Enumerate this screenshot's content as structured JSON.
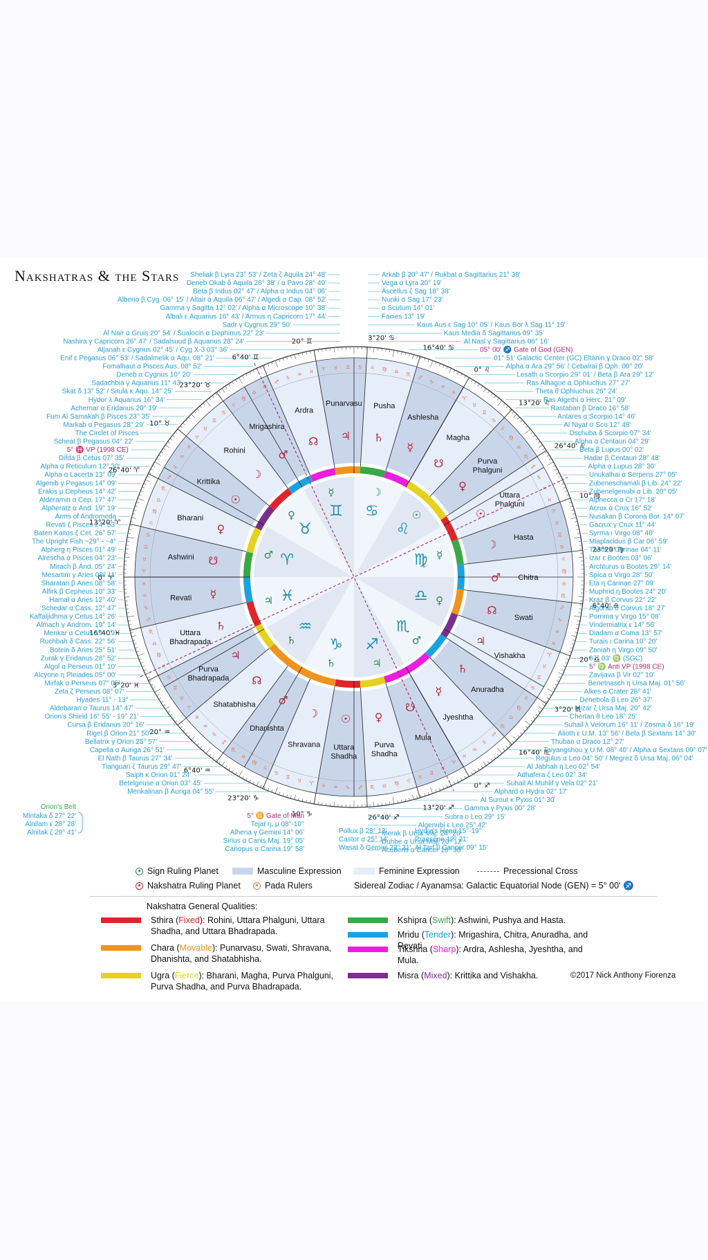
{
  "title": "Nakshatras & the Stars",
  "colors": {
    "fixed": "#e0242b",
    "movable": "#f0921e",
    "fierce": "#e6d21c",
    "swift": "#3aa848",
    "tender": "#1aa3df",
    "sharp": "#ec1ce0",
    "mixed": "#7a2f8f",
    "star_label": "#2a9fd0",
    "masculine": "#c9d6ea",
    "feminine": "#e6eefa",
    "sign_ruler": "#2f8a55",
    "nak_ruler": "#b8283a",
    "pada": "#e4734a",
    "precession": "#9b1b5f",
    "sign_glyph": "#1f8fb8"
  },
  "nakshatras": [
    {
      "name": "Ashwini",
      "ruler": "☋"
    },
    {
      "name": "Bharani",
      "ruler": "♀"
    },
    {
      "name": "Krittika",
      "ruler": "☉"
    },
    {
      "name": "Rohini",
      "ruler": "☽"
    },
    {
      "name": "Mrigashira",
      "ruler": "♂"
    },
    {
      "name": "Ardra",
      "ruler": "☊"
    },
    {
      "name": "Punarvasu",
      "ruler": "♃"
    },
    {
      "name": "Pusha",
      "ruler": "♄"
    },
    {
      "name": "Ashlesha",
      "ruler": "☿"
    },
    {
      "name": "Magha",
      "ruler": "☋"
    },
    {
      "name": "Purva Phalguni",
      "ruler": "♀"
    },
    {
      "name": "Uttara Phalguni",
      "ruler": "☉"
    },
    {
      "name": "Hasta",
      "ruler": "☽"
    },
    {
      "name": "Chitra",
      "ruler": "♂"
    },
    {
      "name": "Swati",
      "ruler": "☊"
    },
    {
      "name": "Vishakha",
      "ruler": "♃"
    },
    {
      "name": "Anuradha",
      "ruler": "♄"
    },
    {
      "name": "Jyeshtha",
      "ruler": "☿"
    },
    {
      "name": "Mula",
      "ruler": "☋"
    },
    {
      "name": "Purva Shadha",
      "ruler": "♀"
    },
    {
      "name": "Uttara Shadha",
      "ruler": "☉"
    },
    {
      "name": "Shravana",
      "ruler": "☽"
    },
    {
      "name": "Dhanishta",
      "ruler": "♂"
    },
    {
      "name": "Shatabhisha",
      "ruler": "☊"
    },
    {
      "name": "Purva Bhadrapada",
      "ruler": "♃"
    },
    {
      "name": "Uttara Bhadrapada",
      "ruler": "♄"
    },
    {
      "name": "Revati",
      "ruler": "☿"
    }
  ],
  "signs": [
    {
      "glyph": "♈",
      "ruler": "♂"
    },
    {
      "glyph": "♉",
      "ruler": "♀"
    },
    {
      "glyph": "♊",
      "ruler": "☿"
    },
    {
      "glyph": "♋",
      "ruler": "☽"
    },
    {
      "glyph": "♌",
      "ruler": "☉"
    },
    {
      "glyph": "♍",
      "ruler": "☿"
    },
    {
      "glyph": "♎",
      "ruler": "♀"
    },
    {
      "glyph": "♏",
      "ruler": "♂"
    },
    {
      "glyph": "♐",
      "ruler": "♃"
    },
    {
      "glyph": "♑",
      "ruler": "♄"
    },
    {
      "glyph": "♒",
      "ruler": "♄"
    },
    {
      "glyph": "♓",
      "ruler": "♃"
    }
  ],
  "degree_labels": [
    {
      "deg": 0,
      "label": "0° ♈"
    },
    {
      "deg": 13.333,
      "label": "13°20' ♈"
    },
    {
      "deg": 26.667,
      "label": "26°40' ♈"
    },
    {
      "deg": 40,
      "label": "10° ♉"
    },
    {
      "deg": 53.333,
      "label": "23°20' ♉"
    },
    {
      "deg": 66.667,
      "label": "6°40' ♊"
    },
    {
      "deg": 80,
      "label": "20° ♊"
    },
    {
      "deg": 93.333,
      "label": "3°20' ♋"
    },
    {
      "deg": 106.667,
      "label": "16°40' ♋"
    },
    {
      "deg": 120,
      "label": "0° ♌"
    },
    {
      "deg": 133.333,
      "label": "13°20' ♌"
    },
    {
      "deg": 146.667,
      "label": "26°40' ♌"
    },
    {
      "deg": 160,
      "label": "10° ♍"
    },
    {
      "deg": 173.333,
      "label": "23°20' ♍"
    },
    {
      "deg": 186.667,
      "label": "6°40' ♎"
    },
    {
      "deg": 200,
      "label": "20° ♎"
    },
    {
      "deg": 213.333,
      "label": "3°20' ♏"
    },
    {
      "deg": 226.667,
      "label": "16°40' ♏"
    },
    {
      "deg": 240,
      "label": "0° ♐"
    },
    {
      "deg": 253.333,
      "label": "13°20' ♐"
    },
    {
      "deg": 266.667,
      "label": "26°40' ♐"
    },
    {
      "deg": 280,
      "label": "10° ♑"
    },
    {
      "deg": 293.333,
      "label": "23°20' ♑"
    },
    {
      "deg": 306.667,
      "label": "6°40' ♒"
    },
    {
      "deg": 320,
      "label": "20° ♒"
    },
    {
      "deg": 333.333,
      "label": "3°20' ♓"
    },
    {
      "deg": 346.667,
      "label": "16°40' ♓"
    }
  ],
  "ring_qualities": [
    "swift",
    "fierce",
    "mixed",
    "fixed",
    "tender",
    "sharp",
    "movable",
    "swift",
    "sharp",
    "fierce",
    "fierce",
    "fixed",
    "swift",
    "tender",
    "movable",
    "mixed",
    "tender",
    "sharp",
    "sharp",
    "fierce",
    "fixed",
    "movable",
    "movable",
    "movable",
    "fierce",
    "fixed",
    "tender"
  ],
  "stars_left": [
    "Sheliak β Lyra 23° 53' / Zeta ζ Aquila 24° 48'",
    "Deneb Okab δ Aquila 28° 38' / α Pavo 28° 49'",
    "Beta β Indus 02° 47' / Alpha α Indus 04° 06'",
    "Alberio β Cyg. 06° 15' / Altair α Aquila 06° 47' / Algedi α Cap. 08° 52'",
    "Gamma γ Sagitta 12° 02' / Alpha α Microscope 10° 38'",
    "Albali ε Aquarius 16° 43' / Armus η Capricorn 17° 44'",
    "Sadr γ Cygnus 29° 50'",
    "Al Nair α Gruis 20° 54' / Sualocin α Dephinus 22° 23'",
    "Nashira γ Capricorn 26° 47' / Sadalsuud β Aquarius 28° 24'",
    "Aljanah ε Cygnus 02° 45' / Cyg X-3 03° 36'",
    "Enif ε Pegasus 06° 53' / Sadalmelik α Aqu. 08° 21'",
    "Fomalhaut α Pisces Aus. 08° 52'",
    "Deneb α Cygnus 10° 20'",
    "Sadachbia γ Aquarius 11° 43'",
    "Skat δ 13° 52' / Situla κ Aqu. 14° 25'",
    "Hydor λ Aquarius 16° 34'",
    "Achernar α Eridanus 20° 19'",
    "Fum Al Samakah β Pisces 23° 35'",
    "Markab α Pegasus 28° 29'",
    "The Circlet of Pisces",
    "Scheat β Pegasus 04° 22'",
    "5° ♓ VP (1998 CE)",
    "Difda β Cetus 07° 35'",
    "Alpha α Reticulum 12° 30'",
    "Alpha α Lacerta 13° 09'",
    "Algenib γ Pegasus 14° 09'",
    "Erakis μ Cepheus 14° 42'",
    "Alderamin α Cep. 17° 47'",
    "Alpheratz α And. 19° 19'",
    "Arms of Andromeda",
    "Revati ζ Pisces 24° 53'",
    "Baten Kaitos ζ Cet. 26° 57'",
    "The Upright Fish ~29° - ~4°",
    "Alpherg η Pisces 01° 49'",
    "Alrescha α Pisces 04° 23'",
    "Mirach β And. 05° 24'",
    "Mesartim γ Aries 08° 11'",
    "Sharatan β Aries 08° 58'",
    "Alfirk β Cepheus 10° 33'",
    "Hamal α Aries 12° 40'",
    "Schedar α Cass. 12° 47'",
    "Kaffaljidhma γ Cetus 14° 26'",
    "Almach γ Androm. 19° 14'",
    "Menkar α Cetus 19° 19'",
    "Ruchbah δ Cass. 22° 56'",
    "Botein δ Aries 25° 51'",
    "Zurak γ Eridanus 28° 52'",
    "Algol α Perseus 01° 10'",
    "Alcyone η Pleiades 05° 00'",
    "Mirfak α Perseus 07° 05'",
    "Zeta ζ Perseus 08° 07'",
    "Hyades 11° - 13°",
    "Aldebaran α Taurus 14° 47'",
    "Orion's Shield 16° 55' - 19° 21'",
    "Cursa β Eridanus 20° 16'",
    "Rigel β Orion 21° 50'",
    "Bellatrix γ Orion 25° 57'",
    "Capella α Auriga 26° 51'",
    "El Nath β Taurus 27° 34'",
    "Tianguan ζ Taurus 29° 47'",
    "Saiph κ Orion 01° 24'",
    "Betelgeuse α Orion 03° 45'",
    "Menkalinan β Auriga 04° 55'"
  ],
  "orions_belt": {
    "title": "Orion's Belt",
    "stars": [
      "Mintaka δ 27° 22'",
      "Alnilam ε 28° 28'",
      "Alnitak ζ 29° 41'"
    ]
  },
  "stars_bottom": [
    "5° ♊ Gate of Man",
    "Tejat η, μ 08°-10°",
    "Alhena γ Gemini 14° 06'",
    "Sirius α Canis Maj. 19° 05'",
    "Canopus α Carina 19° 58'",
    "Pollux β 28° 13'",
    "Castor α 25° 14'",
    "Wasat δ Gemini 23° 31'",
    "Hydra's Head 15°-19°",
    "Praesepe 12° 21'",
    "Al Tarf β Cancer 09° 15'"
  ],
  "stars_right": [
    "Arkab β 20° 47' / Rukbat α Sagittarius 21° 38'",
    "Vega α Lyra 20° 19'",
    "Ascellus ζ Sag 18° 38'",
    "Nunki σ Sag 17° 23'",
    "α Scutum 14° 01'",
    "Facies 13° 19'",
    "Kaus Aus ε Sag 10° 05' / Kaus Bor λ Sag 11° 19'",
    "Kaus Media δ Sagittarius 09° 35'",
    "Al Nasl γ Sagittarius 06° 16'",
    "05° 00' ♐ Gate of God (GEN)",
    "01° 51' Galactic Center (GC)   Eltanin γ Draco 02° 58'",
    "Alpha α Ara 29° 56' / Cebalrai β Oph. 00° 20'",
    "Lesath υ Scorpio 29° 01' /  Beta β Ara 29° 12'",
    "Ras Alhague α Ophiuchus 27° 27'",
    "Theta θ Ophiuchus 26° 24'",
    "Ras Algethi α Herc. 21° 09'",
    "Rastaban β Draco 16° 58'",
    "Antares α Scorpio 14° 46'",
    "Al Niyat σ Sco 12° 48'",
    "Dschuba δ Scorpio 07° 34'",
    "Alpha α Centauri 04° 29'",
    "Beta β Lupus 00° 02'",
    "Hadar β Centauri 28° 48'",
    "Alpha α Lupus 28° 30'",
    "Unukalhai α Serpens 27° 05'",
    "Zubeneschamali β Lib. 24° 22'",
    "Zubenelgenubi α Lib. 20° 05'",
    "Alphecca α Cr 17° 18'",
    "Acrux α Crux 16° 52'",
    "Nusakan β Corona Bor. 14° 07'",
    "Gacrux γ Crux 11° 44'",
    "Syrma ι Virgo 08° 48'",
    "Miaplacidus β Car 06° 59'",
    "Theta θ Carinae 04° 11'",
    "Izar ε Boötes 03° 06'",
    "Archturus α Bootes 29° 14'",
    "Spica α Virgo 28° 50'",
    "Eta η Carinae 27° 09'",
    "Muphrid η Bootes 24° 20'",
    "Kraz β Corvus 22° 22'",
    "Algorab δ Corvus 18° 27'",
    "Porrima γ Virgo 15° 08'",
    "Vindemiatrix ε 14° 56'",
    "Diadam α Coma 13° 57'",
    "Turais ι Carina 10° 20'",
    "Zaniah η Virgo 09° 50'",
    "07° 03' ♍ (SGC)",
    "5° ♍ Anti VP (1998 CE)",
    "Zavijava β Vir 02° 10'",
    "Benetnasch η Ursa Maj. 01° 56'",
    "Alkes α Crater 28° 41'",
    "Denebola β Leo 26° 37'",
    "Mizar ζ Ursa Maj. 20° 42'",
    "Chertan θ Leo 18° 25'",
    "Suhail λ Velorum 16° 11' / Zosma δ 16° 19'",
    "Alioth ε U.M. 13° 56' / Beta β Sextans 14° 30'",
    "Thuban α Draco 12° 27'",
    "Taiyangshou χ U.M. 08° 40' / Alpha α Sextans 09° 07'",
    "Regulus α Leo 04° 50' / Megrez δ Ursa Maj. 06° 04'",
    "Al Jabhah η Leo 02° 54'",
    "Adhafera ζ Leo 02° 34'",
    "Suhail Al Muhlif γ Vela 02° 21'",
    "Alphard α Hydra 02° 17'",
    "Al Sumut κ Pyxis 01° 30'",
    "Gamma γ Pyxis 00° 28'",
    "Subra ο Leo 29° 15'",
    "Algenubi ε Leo 25° 42'",
    "Merak β Ursa Maj. 24° 26'",
    "Duhbe α Ursa Maj. 20° 12'",
    "Acubens α Cancer 18° 38'"
  ],
  "legend": {
    "sign_ruling": "Sign Ruling Planet",
    "nak_ruling": "Nakshatra Ruling Planet",
    "masculine": "Masculine Expression",
    "feminine": "Feminine Expression",
    "pada": "Pada Rulers",
    "precession": "Precessional Cross",
    "zodiac": "Sidereal Zodiac / Ayanamsa: Galactic Equatorial Node (GEN) = 5° 00' ♐"
  },
  "qualities": {
    "header": "Nakshatra General Qualities:",
    "items": [
      {
        "key": "fixed",
        "name": "Sthira",
        "kind": "Fixed",
        "text": "Rohini, Uttara Phalguni, Uttara Shadha, and Uttara Bhadrapada."
      },
      {
        "key": "movable",
        "name": "Chara",
        "kind": "Movable",
        "text": "Punarvasu, Swati, Shravana, Dhanishta, and Shatabhisha."
      },
      {
        "key": "fierce",
        "name": "Ugra",
        "kind": "Fierce",
        "text": "Bharani, Magha, Purva Phalguni, Purva Shadha, and Purva Bhadrapada."
      },
      {
        "key": "swift",
        "name": "Kshipra",
        "kind": "Swift",
        "text": "Ashwini, Pushya and Hasta."
      },
      {
        "key": "tender",
        "name": "Mridu",
        "kind": "Tender",
        "text": "Mrigashira, Chitra, Anuradha, and Revati."
      },
      {
        "key": "sharp",
        "name": "Tikshna",
        "kind": "Sharp",
        "text": "Ardra, Ashlesha, Jyeshtha, and Mula."
      },
      {
        "key": "mixed",
        "name": "Misra",
        "kind": "Mixed",
        "text": "Krittika and Vishakha."
      }
    ]
  },
  "copyright": "©2017 Nick Anthony Fiorenza"
}
